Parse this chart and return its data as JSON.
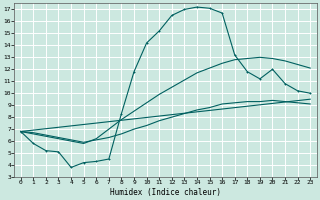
{
  "xlabel": "Humidex (Indice chaleur)",
  "ylabel": "",
  "bg_color": "#cce8e0",
  "grid_color": "#ffffff",
  "line_color": "#006060",
  "xlim": [
    -0.5,
    23.5
  ],
  "ylim": [
    3,
    17.5
  ],
  "xticks": [
    0,
    1,
    2,
    3,
    4,
    5,
    6,
    7,
    8,
    9,
    10,
    11,
    12,
    13,
    14,
    15,
    16,
    17,
    18,
    19,
    20,
    21,
    22,
    23
  ],
  "yticks": [
    3,
    4,
    5,
    6,
    7,
    8,
    9,
    10,
    11,
    12,
    13,
    14,
    15,
    16,
    17
  ],
  "curve1_x": [
    0,
    1,
    2,
    3,
    4,
    5,
    6,
    7,
    8,
    9,
    10,
    11,
    12,
    13,
    14,
    15,
    16,
    17,
    18,
    19,
    20,
    21,
    22,
    23
  ],
  "curve1_y": [
    6.8,
    5.8,
    5.2,
    5.1,
    3.8,
    4.2,
    4.3,
    4.5,
    8.3,
    11.8,
    14.2,
    15.2,
    16.5,
    17.0,
    17.2,
    17.1,
    16.7,
    13.2,
    11.8,
    11.2,
    12.0,
    10.8,
    10.2,
    10.0
  ],
  "curve2_x": [
    0,
    1,
    2,
    3,
    4,
    5,
    6,
    7,
    8,
    9,
    10,
    11,
    12,
    13,
    14,
    15,
    16,
    17,
    18,
    19,
    20,
    21,
    22,
    23
  ],
  "curve2_y": [
    6.8,
    6.6,
    6.4,
    6.2,
    6.0,
    5.8,
    6.2,
    7.0,
    7.8,
    8.5,
    9.2,
    9.9,
    10.5,
    11.1,
    11.7,
    12.1,
    12.5,
    12.8,
    12.9,
    13.0,
    12.9,
    12.7,
    12.4,
    12.1
  ],
  "curve3_x": [
    0,
    1,
    2,
    3,
    4,
    5,
    6,
    7,
    8,
    9,
    10,
    11,
    12,
    13,
    14,
    15,
    16,
    17,
    18,
    19,
    20,
    21,
    22,
    23
  ],
  "curve3_y": [
    6.8,
    6.7,
    6.5,
    6.3,
    6.1,
    5.9,
    6.1,
    6.3,
    6.6,
    7.0,
    7.3,
    7.7,
    8.0,
    8.3,
    8.6,
    8.8,
    9.1,
    9.2,
    9.3,
    9.3,
    9.4,
    9.3,
    9.2,
    9.1
  ],
  "curve4_x": [
    0,
    23
  ],
  "curve4_y": [
    6.8,
    9.5
  ]
}
